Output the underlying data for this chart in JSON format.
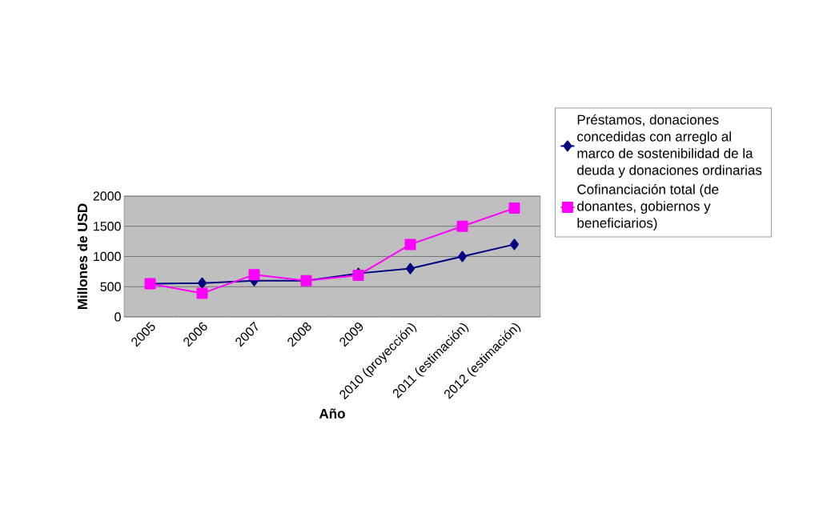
{
  "chart_data": {
    "type": "line",
    "xlabel": "Año",
    "ylabel": "Millones de USD",
    "categories": [
      "2005",
      "2006",
      "2007",
      "2008",
      "2009",
      "2010 (proyección)",
      "2011 (estimación)",
      "2012 (estimación)"
    ],
    "series": [
      {
        "name": "Préstamos, donaciones concedidas con arreglo al marco de sostenibilidad de la deuda y donaciones ordinarias",
        "color": "#000080",
        "marker": "diamond",
        "values": [
          550,
          560,
          600,
          600,
          720,
          800,
          1000,
          1200
        ]
      },
      {
        "name": "Cofinanciación total (de donantes, gobiernos y beneficiarios)",
        "color": "#ff00ff",
        "marker": "square",
        "values": [
          550,
          390,
          700,
          600,
          690,
          1200,
          1500,
          1800
        ]
      }
    ],
    "ylim": [
      0,
      2000
    ],
    "yticks": [
      0,
      500,
      1000,
      1500,
      2000
    ],
    "grid": "y",
    "legend": "right"
  }
}
